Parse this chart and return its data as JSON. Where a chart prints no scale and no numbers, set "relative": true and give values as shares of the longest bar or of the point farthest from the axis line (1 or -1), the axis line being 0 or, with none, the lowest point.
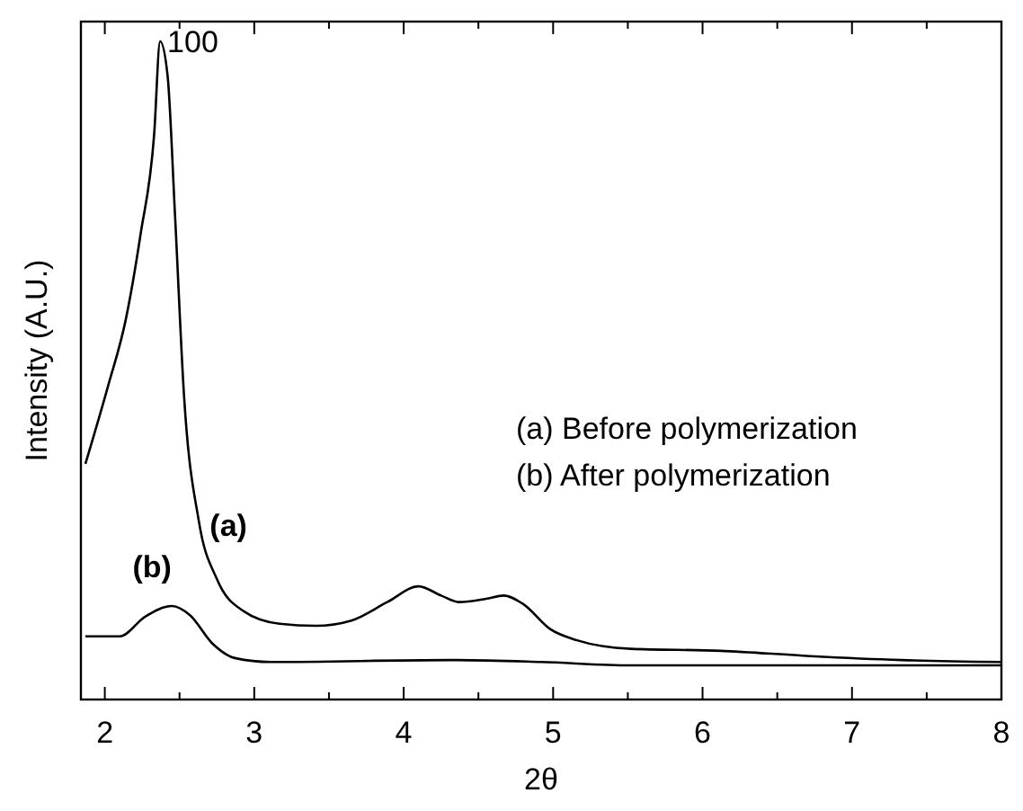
{
  "chart_data": {
    "type": "line",
    "relative": true,
    "xlabel": "2θ",
    "ylabel": "Intensity (A.U.)",
    "xlim": [
      1.84,
      8.0
    ],
    "xticks": [
      2,
      {
        "value": 2.5,
        "label": null
      },
      3,
      {
        "value": 3.5,
        "label": null
      },
      4,
      {
        "value": 4.5,
        "label": null
      },
      5,
      {
        "value": 5.5,
        "label": null
      },
      6,
      {
        "value": 6.5,
        "label": null
      },
      7,
      {
        "value": 7.5,
        "label": null
      },
      8
    ],
    "tick_labels": "x",
    "line_style": "solid",
    "series": [
      {
        "color": "#000000",
        "x": [
          1.87,
          2.02,
          2.14,
          2.24,
          2.33,
          2.37,
          2.42,
          2.47,
          2.53,
          2.63,
          2.75,
          2.93,
          3.17,
          3.41,
          3.65,
          3.89,
          4.1,
          4.25,
          4.37,
          4.55,
          4.67,
          4.8,
          4.98,
          5.16,
          5.52,
          6.12,
          6.72,
          7.33,
          8.0
        ],
        "values": [
          0.358,
          0.475,
          0.577,
          0.708,
          0.858,
          1.0,
          0.948,
          0.735,
          0.462,
          0.27,
          0.183,
          0.134,
          0.115,
          0.112,
          0.12,
          0.148,
          0.172,
          0.158,
          0.148,
          0.153,
          0.158,
          0.145,
          0.107,
          0.09,
          0.077,
          0.074,
          0.066,
          0.06,
          0.057
        ]
      },
      {
        "color": "#000000",
        "x": [
          1.87,
          2.1,
          2.27,
          2.45,
          2.57,
          2.72,
          2.87,
          3.11,
          4.31,
          4.92,
          5.52,
          8.0
        ],
        "values": [
          0.096,
          0.096,
          0.126,
          0.142,
          0.128,
          0.085,
          0.063,
          0.057,
          0.06,
          0.057,
          0.052,
          0.052
        ]
      }
    ],
    "annotations": [
      {
        "text": "100",
        "x": 2.37,
        "y": 1.0
      },
      {
        "text": "(a)",
        "x": 2.63,
        "y": 0.27
      },
      {
        "text": "(b)",
        "x": 2.45,
        "y": 0.142
      },
      "(a) Before polymerization",
      "(b) After polymerization"
    ]
  }
}
